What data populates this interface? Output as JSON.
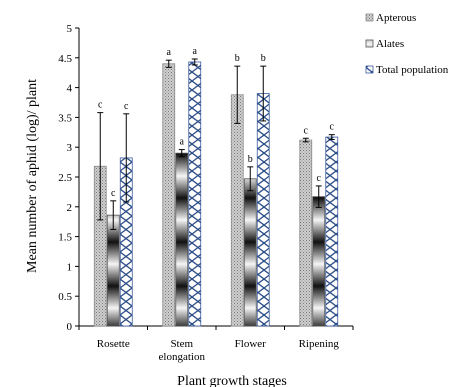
{
  "chart_data": {
    "type": "bar",
    "xlabel": "Plant growth stages",
    "ylabel": "Mean number of aphid (log)/ plant",
    "ylim": [
      0,
      5
    ],
    "yticks": [
      "0",
      "0.5",
      "1",
      "1.5",
      "2",
      "2.5",
      "3",
      "3.5",
      "4",
      "4.5",
      "5"
    ],
    "categories": [
      "Rosette",
      "Stem\nelongation",
      "Flower",
      "Ripening"
    ],
    "legend_position": "top-right",
    "series": [
      {
        "name": "Apterous",
        "values": [
          2.68,
          4.4,
          3.88,
          3.12
        ],
        "errors": [
          0.9,
          0.06,
          0.48,
          0.03
        ],
        "letters": [
          "c",
          "a",
          "b",
          "c"
        ]
      },
      {
        "name": "Alates",
        "values": [
          1.86,
          2.9,
          2.47,
          2.17
        ],
        "errors": [
          0.24,
          0.06,
          0.2,
          0.18
        ],
        "letters": [
          "c",
          "a",
          "b",
          "c"
        ]
      },
      {
        "name": "Total population",
        "values": [
          2.82,
          4.43,
          3.9,
          3.17
        ],
        "errors": [
          0.74,
          0.05,
          0.46,
          0.04
        ],
        "letters": [
          "c",
          "a",
          "b",
          "c"
        ]
      }
    ]
  }
}
